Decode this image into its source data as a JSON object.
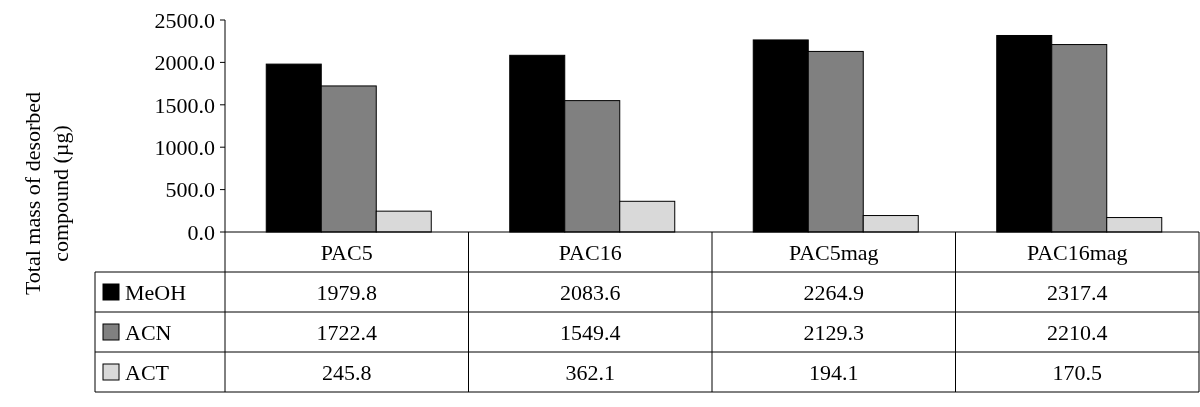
{
  "chart_data": {
    "type": "bar",
    "ylabel": "Total mass of desorbed compound (µg)",
    "categories": [
      "PAC5",
      "PAC16",
      "PAC5mag",
      "PAC16mag"
    ],
    "series": [
      {
        "name": "MeOH",
        "color": "#000000",
        "values": [
          1979.8,
          2083.6,
          2264.9,
          2317.4
        ]
      },
      {
        "name": "ACN",
        "color": "#808080",
        "values": [
          1722.4,
          1549.4,
          2129.3,
          2210.4
        ]
      },
      {
        "name": "ACT",
        "color": "#d9d9d9",
        "values": [
          245.8,
          362.1,
          194.1,
          170.5
        ]
      }
    ],
    "ylim": [
      0,
      2500
    ],
    "yticks": [
      {
        "value": 0,
        "label": "0.0"
      },
      {
        "value": 500,
        "label": "500.0"
      },
      {
        "value": 1000,
        "label": "1000.0"
      },
      {
        "value": 1500,
        "label": "1500.0"
      },
      {
        "value": 2000,
        "label": "2000.0"
      },
      {
        "value": 2500,
        "label": "2500.0"
      }
    ],
    "data_labels": true,
    "legend": "bottom",
    "grid": false
  }
}
